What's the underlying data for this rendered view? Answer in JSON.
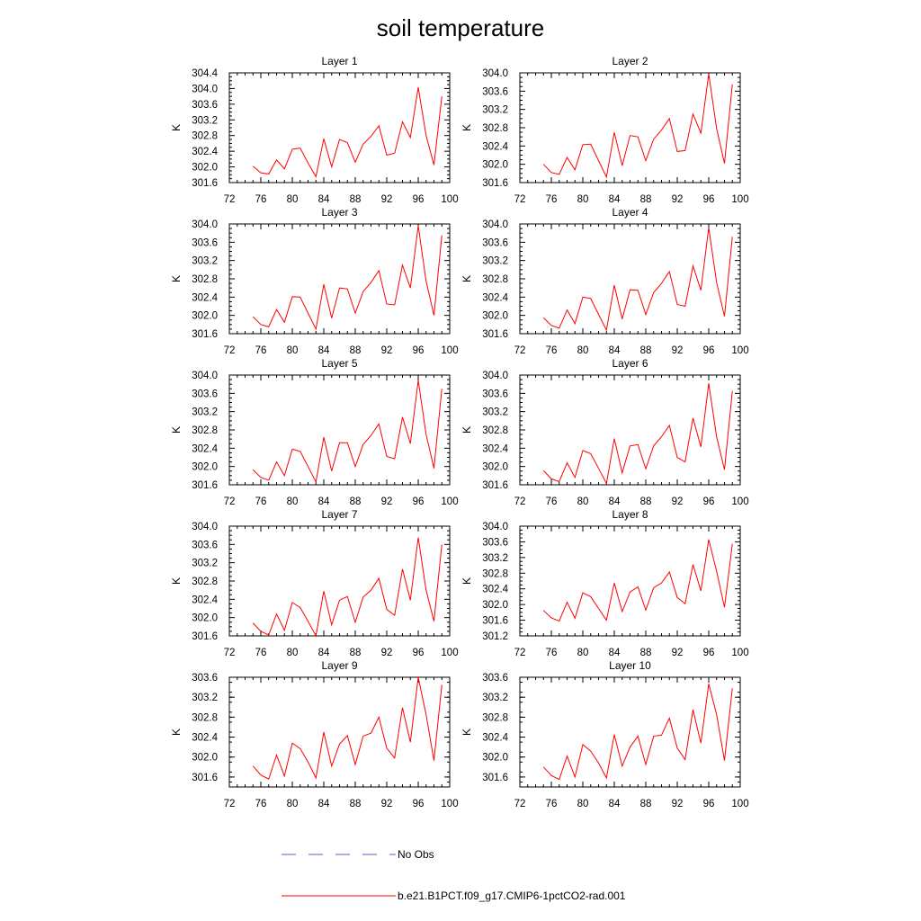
{
  "figure": {
    "title": "soil temperature"
  },
  "chart_data": [
    {
      "type": "line",
      "title": "Layer 1",
      "ylabel": "K",
      "xlim": [
        72,
        100
      ],
      "ylim": [
        301.6,
        304.4
      ],
      "xticks": [
        "72",
        "76",
        "80",
        "84",
        "88",
        "92",
        "96",
        "100"
      ],
      "yticks": [
        "301.6",
        "302.0",
        "302.4",
        "302.8",
        "303.2",
        "303.6",
        "304.0",
        "304.4"
      ],
      "x": [
        75,
        76,
        77,
        78,
        79,
        80,
        81,
        82,
        83,
        84,
        85,
        86,
        87,
        88,
        89,
        90,
        91,
        92,
        93,
        94,
        95,
        96,
        97,
        98,
        99
      ],
      "series": [
        {
          "name": "b.e21.B1PCT.f09_g17.CMIP6-1pctCO2-rad.001",
          "color": "#ff0000",
          "values": [
            302.02,
            301.85,
            301.82,
            302.18,
            301.95,
            302.45,
            302.48,
            302.1,
            301.75,
            302.72,
            302.0,
            302.7,
            302.62,
            302.12,
            302.58,
            302.78,
            303.05,
            302.3,
            302.35,
            303.15,
            302.75,
            304.03,
            302.8,
            302.05,
            303.8
          ]
        }
      ]
    },
    {
      "type": "line",
      "title": "Layer 2",
      "ylabel": "K",
      "xlim": [
        72,
        100
      ],
      "ylim": [
        301.6,
        304.0
      ],
      "xticks": [
        "72",
        "76",
        "80",
        "84",
        "88",
        "92",
        "96",
        "100"
      ],
      "yticks": [
        "301.6",
        "302.0",
        "302.4",
        "302.8",
        "303.2",
        "303.6",
        "304.0"
      ],
      "x": [
        75,
        76,
        77,
        78,
        79,
        80,
        81,
        82,
        83,
        84,
        85,
        86,
        87,
        88,
        89,
        90,
        91,
        92,
        93,
        94,
        95,
        96,
        97,
        98,
        99
      ],
      "series": [
        {
          "name": "b.e21.B1PCT.f09_g17.CMIP6-1pctCO2-rad.001",
          "color": "#ff0000",
          "values": [
            302.0,
            301.82,
            301.78,
            302.15,
            301.88,
            302.43,
            302.44,
            302.08,
            301.72,
            302.7,
            301.97,
            302.63,
            302.6,
            302.08,
            302.55,
            302.75,
            303.0,
            302.28,
            302.3,
            303.1,
            302.68,
            303.98,
            302.78,
            302.02,
            303.75
          ]
        }
      ]
    },
    {
      "type": "line",
      "title": "Layer 3",
      "ylabel": "K",
      "xlim": [
        72,
        100
      ],
      "ylim": [
        301.6,
        304.0
      ],
      "xticks": [
        "72",
        "76",
        "80",
        "84",
        "88",
        "92",
        "96",
        "100"
      ],
      "yticks": [
        "301.6",
        "302.0",
        "302.4",
        "302.8",
        "303.2",
        "303.6",
        "304.0"
      ],
      "x": [
        75,
        76,
        77,
        78,
        79,
        80,
        81,
        82,
        83,
        84,
        85,
        86,
        87,
        88,
        89,
        90,
        91,
        92,
        93,
        94,
        95,
        96,
        97,
        98,
        99
      ],
      "series": [
        {
          "name": "b.e21.B1PCT.f09_g17.CMIP6-1pctCO2-rad.001",
          "color": "#ff0000",
          "values": [
            301.97,
            301.8,
            301.75,
            302.13,
            301.85,
            302.41,
            302.4,
            302.05,
            301.7,
            302.68,
            301.94,
            302.6,
            302.58,
            302.05,
            302.52,
            302.72,
            302.98,
            302.25,
            302.23,
            303.1,
            302.6,
            303.96,
            302.75,
            302.0,
            303.75
          ]
        }
      ]
    },
    {
      "type": "line",
      "title": "Layer 4",
      "ylabel": "K",
      "xlim": [
        72,
        100
      ],
      "ylim": [
        301.6,
        304.0
      ],
      "xticks": [
        "72",
        "76",
        "80",
        "84",
        "88",
        "92",
        "96",
        "100"
      ],
      "yticks": [
        "301.6",
        "302.0",
        "302.4",
        "302.8",
        "303.2",
        "303.6",
        "304.0"
      ],
      "x": [
        75,
        76,
        77,
        78,
        79,
        80,
        81,
        82,
        83,
        84,
        85,
        86,
        87,
        88,
        89,
        90,
        91,
        92,
        93,
        94,
        95,
        96,
        97,
        98,
        99
      ],
      "series": [
        {
          "name": "b.e21.B1PCT.f09_g17.CMIP6-1pctCO2-rad.001",
          "color": "#ff0000",
          "values": [
            301.95,
            301.78,
            301.72,
            302.12,
            301.82,
            302.4,
            302.37,
            302.02,
            301.68,
            302.66,
            301.92,
            302.56,
            302.55,
            302.02,
            302.5,
            302.7,
            302.96,
            302.24,
            302.2,
            303.08,
            302.55,
            303.92,
            302.72,
            301.98,
            303.72
          ]
        }
      ]
    },
    {
      "type": "line",
      "title": "Layer 5",
      "ylabel": "K",
      "xlim": [
        72,
        100
      ],
      "ylim": [
        301.6,
        304.0
      ],
      "xticks": [
        "72",
        "76",
        "80",
        "84",
        "88",
        "92",
        "96",
        "100"
      ],
      "yticks": [
        "301.6",
        "302.0",
        "302.4",
        "302.8",
        "303.2",
        "303.6",
        "304.0"
      ],
      "x": [
        75,
        76,
        77,
        78,
        79,
        80,
        81,
        82,
        83,
        84,
        85,
        86,
        87,
        88,
        89,
        90,
        91,
        92,
        93,
        94,
        95,
        96,
        97,
        98,
        99
      ],
      "series": [
        {
          "name": "b.e21.B1PCT.f09_g17.CMIP6-1pctCO2-rad.001",
          "color": "#ff0000",
          "values": [
            301.93,
            301.76,
            301.7,
            302.1,
            301.8,
            302.38,
            302.33,
            302.0,
            301.66,
            302.64,
            301.9,
            302.52,
            302.52,
            302.0,
            302.48,
            302.68,
            302.93,
            302.22,
            302.17,
            303.08,
            302.5,
            303.88,
            302.7,
            301.96,
            303.7
          ]
        }
      ]
    },
    {
      "type": "line",
      "title": "Layer 6",
      "ylabel": "K",
      "xlim": [
        72,
        100
      ],
      "ylim": [
        301.6,
        304.0
      ],
      "xticks": [
        "72",
        "76",
        "80",
        "84",
        "88",
        "92",
        "96",
        "100"
      ],
      "yticks": [
        "301.6",
        "302.0",
        "302.4",
        "302.8",
        "303.2",
        "303.6",
        "304.0"
      ],
      "x": [
        75,
        76,
        77,
        78,
        79,
        80,
        81,
        82,
        83,
        84,
        85,
        86,
        87,
        88,
        89,
        90,
        91,
        92,
        93,
        94,
        95,
        96,
        97,
        98,
        99
      ],
      "series": [
        {
          "name": "b.e21.B1PCT.f09_g17.CMIP6-1pctCO2-rad.001",
          "color": "#ff0000",
          "values": [
            301.91,
            301.73,
            301.67,
            302.08,
            301.76,
            302.35,
            302.28,
            301.96,
            301.63,
            302.61,
            301.86,
            302.45,
            302.48,
            301.95,
            302.45,
            302.65,
            302.9,
            302.2,
            302.1,
            303.06,
            302.43,
            303.82,
            302.65,
            301.93,
            303.65
          ]
        }
      ]
    },
    {
      "type": "line",
      "title": "Layer 7",
      "ylabel": "K",
      "xlim": [
        72,
        100
      ],
      "ylim": [
        301.6,
        304.0
      ],
      "xticks": [
        "72",
        "76",
        "80",
        "84",
        "88",
        "92",
        "96",
        "100"
      ],
      "yticks": [
        "301.6",
        "302.0",
        "302.4",
        "302.8",
        "303.2",
        "303.6",
        "304.0"
      ],
      "x": [
        75,
        76,
        77,
        78,
        79,
        80,
        81,
        82,
        83,
        84,
        85,
        86,
        87,
        88,
        89,
        90,
        91,
        92,
        93,
        94,
        95,
        96,
        97,
        98,
        99
      ],
      "series": [
        {
          "name": "b.e21.B1PCT.f09_g17.CMIP6-1pctCO2-rad.001",
          "color": "#ff0000",
          "values": [
            301.88,
            301.7,
            301.62,
            302.08,
            301.72,
            302.33,
            302.22,
            301.92,
            301.6,
            302.58,
            301.84,
            302.38,
            302.46,
            301.9,
            302.45,
            302.6,
            302.86,
            302.18,
            302.05,
            303.06,
            302.38,
            303.75,
            302.6,
            301.92,
            303.6
          ]
        }
      ]
    },
    {
      "type": "line",
      "title": "Layer 8",
      "ylabel": "K",
      "xlim": [
        72,
        100
      ],
      "ylim": [
        301.2,
        304.0
      ],
      "xticks": [
        "72",
        "76",
        "80",
        "84",
        "88",
        "92",
        "96",
        "100"
      ],
      "yticks": [
        "301.2",
        "301.6",
        "302.0",
        "302.4",
        "302.8",
        "303.2",
        "303.6",
        "304.0"
      ],
      "x": [
        75,
        76,
        77,
        78,
        79,
        80,
        81,
        82,
        83,
        84,
        85,
        86,
        87,
        88,
        89,
        90,
        91,
        92,
        93,
        94,
        95,
        96,
        97,
        98,
        99
      ],
      "series": [
        {
          "name": "b.e21.B1PCT.f09_g17.CMIP6-1pctCO2-rad.001",
          "color": "#ff0000",
          "values": [
            301.85,
            301.66,
            301.58,
            302.06,
            301.65,
            302.3,
            302.2,
            301.9,
            301.6,
            302.55,
            301.82,
            302.32,
            302.45,
            301.86,
            302.43,
            302.55,
            302.83,
            302.18,
            302.02,
            303.02,
            302.35,
            303.66,
            302.85,
            301.93,
            303.55
          ]
        }
      ]
    },
    {
      "type": "line",
      "title": "Layer 9",
      "ylabel": "K",
      "xlim": [
        72,
        100
      ],
      "ylim": [
        301.4,
        303.6
      ],
      "xticks": [
        "72",
        "76",
        "80",
        "84",
        "88",
        "92",
        "96",
        "100"
      ],
      "yticks": [
        "301.6",
        "302.0",
        "302.4",
        "302.8",
        "303.2",
        "303.6"
      ],
      "x": [
        75,
        76,
        77,
        78,
        79,
        80,
        81,
        82,
        83,
        84,
        85,
        86,
        87,
        88,
        89,
        90,
        91,
        92,
        93,
        94,
        95,
        96,
        97,
        98,
        99
      ],
      "series": [
        {
          "name": "b.e21.B1PCT.f09_g17.CMIP6-1pctCO2-rad.001",
          "color": "#ff0000",
          "values": [
            301.82,
            301.64,
            301.56,
            302.04,
            301.62,
            302.28,
            302.17,
            301.9,
            301.58,
            302.5,
            301.82,
            302.26,
            302.43,
            301.85,
            302.42,
            302.48,
            302.8,
            302.18,
            301.98,
            302.99,
            302.3,
            303.6,
            302.85,
            301.93,
            303.45
          ]
        }
      ]
    },
    {
      "type": "line",
      "title": "Layer 10",
      "ylabel": "K",
      "xlim": [
        72,
        100
      ],
      "ylim": [
        301.4,
        303.6
      ],
      "xticks": [
        "72",
        "76",
        "80",
        "84",
        "88",
        "92",
        "96",
        "100"
      ],
      "yticks": [
        "301.6",
        "302.0",
        "302.4",
        "302.8",
        "303.2",
        "303.6"
      ],
      "x": [
        75,
        76,
        77,
        78,
        79,
        80,
        81,
        82,
        83,
        84,
        85,
        86,
        87,
        88,
        89,
        90,
        91,
        92,
        93,
        94,
        95,
        96,
        97,
        98,
        99
      ],
      "series": [
        {
          "name": "b.e21.B1PCT.f09_g17.CMIP6-1pctCO2-rad.001",
          "color": "#ff0000",
          "values": [
            301.8,
            301.63,
            301.55,
            302.02,
            301.6,
            302.25,
            302.12,
            301.88,
            301.58,
            302.45,
            301.82,
            302.2,
            302.42,
            301.85,
            302.42,
            302.44,
            302.78,
            302.18,
            301.95,
            302.95,
            302.28,
            303.47,
            302.85,
            301.93,
            303.38
          ]
        }
      ]
    }
  ],
  "legend": [
    {
      "label": "No Obs",
      "color": "#5060c8",
      "style": "dashed"
    },
    {
      "label": "b.e21.B1PCT.f09_g17.CMIP6-1pctCO2-rad.001",
      "color": "#ff0000",
      "style": "solid"
    }
  ]
}
